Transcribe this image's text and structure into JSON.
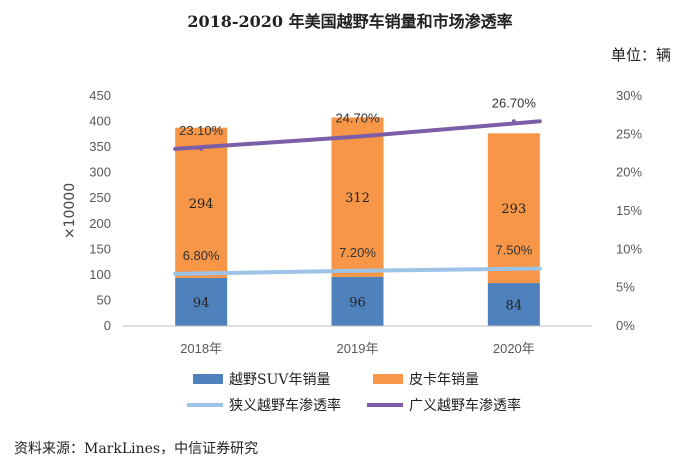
{
  "header": {
    "title": "2018-2020 年美国越野车销量和市场渗透率",
    "unit": "单位：辆"
  },
  "footer": {
    "source": "资料来源：MarkLines，中信证券研究"
  },
  "colors": {
    "suv": "#4f81bd",
    "pickup": "#f79646",
    "narrow": "#9dc3e6",
    "broad": "#7b5ea7",
    "axis": "#bfbfbf"
  },
  "chart_data": {
    "type": "bar",
    "stacked": true,
    "title": "2018-2020 年美国越野车销量和市场渗透率",
    "categories": [
      "2018年",
      "2019年",
      "2020年"
    ],
    "ylabel": "×10000",
    "ylim": [
      0,
      450
    ],
    "yticks": [
      "0",
      "50",
      "100",
      "150",
      "200",
      "250",
      "300",
      "350",
      "400",
      "450"
    ],
    "y2lim": [
      0,
      30
    ],
    "y2ticks": [
      "0%",
      "5%",
      "10%",
      "15%",
      "20%",
      "25%",
      "30%"
    ],
    "series": [
      {
        "name": "越野SUV年销量",
        "kind": "bar",
        "axis": "left",
        "values": [
          94,
          96,
          84
        ],
        "labels": [
          "94",
          "96",
          "84"
        ]
      },
      {
        "name": "皮卡年销量",
        "kind": "bar",
        "axis": "left",
        "values": [
          294,
          312,
          293
        ],
        "labels": [
          "294",
          "312",
          "293"
        ]
      },
      {
        "name": "狭义越野车渗透率",
        "kind": "line",
        "axis": "right",
        "values": [
          6.8,
          7.2,
          7.5
        ],
        "labels": [
          "6.80%",
          "7.20%",
          "7.50%"
        ]
      },
      {
        "name": "广义越野车渗透率",
        "kind": "line",
        "axis": "right",
        "values": [
          23.1,
          24.7,
          26.7
        ],
        "labels": [
          "23.10%",
          "24.70%",
          "26.70%"
        ]
      }
    ],
    "legend_position": "bottom"
  }
}
